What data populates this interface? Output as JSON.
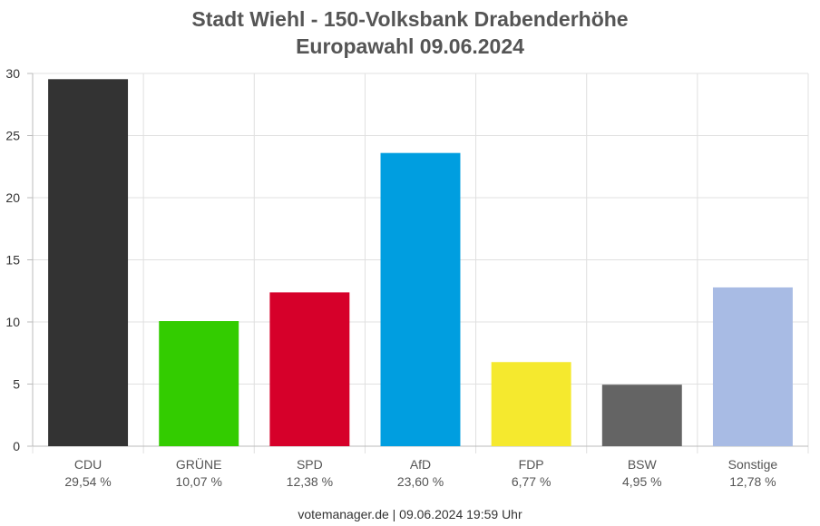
{
  "chart_data": {
    "type": "bar",
    "title": "Stadt Wiehl - 150-Volksbank Drabenderhöhe",
    "subtitle": "Europawahl 09.06.2024",
    "categories": [
      "CDU",
      "GRÜNE",
      "SPD",
      "AfD",
      "FDP",
      "BSW",
      "Sonstige"
    ],
    "values": [
      29.54,
      10.07,
      12.38,
      23.6,
      6.77,
      4.95,
      12.78
    ],
    "value_labels": [
      "29,54 %",
      "10,07 %",
      "12,38 %",
      "23,60 %",
      "6,77 %",
      "4,95 %",
      "12,78 %"
    ],
    "colors": [
      "#333333",
      "#33cc00",
      "#d6002a",
      "#009ee0",
      "#f5e92e",
      "#646464",
      "#a8bbe4"
    ],
    "ylim": [
      0,
      30
    ],
    "yticks": [
      "0",
      "5",
      "10",
      "15",
      "20",
      "25",
      "30"
    ],
    "grid": true,
    "xlabel": "",
    "ylabel": ""
  },
  "footer": "votemanager.de | 09.06.2024 19:59 Uhr"
}
